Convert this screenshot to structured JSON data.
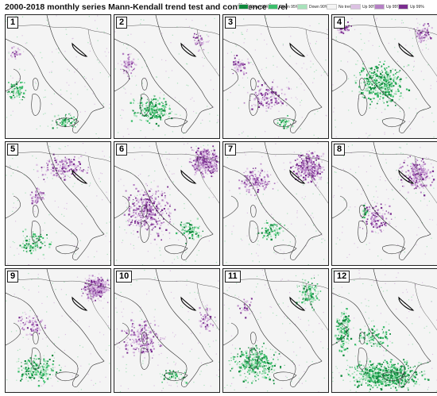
{
  "title": "2000-2018 monthly series Mann-Kendall trend test and confidence level",
  "legend": [
    {
      "label": "Down 99%",
      "color": "#0f8a3c"
    },
    {
      "label": "Down 95%",
      "color": "#3cbf6c"
    },
    {
      "label": "Down 90%",
      "color": "#a8e2bb"
    },
    {
      "label": "No trend",
      "color": "#f5f5f5"
    },
    {
      "label": "Up 90%",
      "color": "#dcc1e3"
    },
    {
      "label": "Up 95%",
      "color": "#b57fc4"
    },
    {
      "label": "Up 99%",
      "color": "#7a2d8f"
    }
  ],
  "panels": [
    {
      "label": "1",
      "month": 1,
      "pattern": [
        [
          "down",
          0.1,
          0.6,
          0.15,
          0.1,
          80
        ],
        [
          "down",
          0.55,
          0.85,
          0.15,
          0.08,
          60
        ],
        [
          "up",
          0.1,
          0.3,
          0.1,
          0.08,
          30
        ]
      ]
    },
    {
      "label": "2",
      "month": 2,
      "pattern": [
        [
          "down",
          0.35,
          0.75,
          0.25,
          0.14,
          220
        ],
        [
          "up",
          0.12,
          0.4,
          0.1,
          0.12,
          70
        ],
        [
          "up",
          0.8,
          0.2,
          0.1,
          0.1,
          40
        ]
      ]
    },
    {
      "label": "3",
      "month": 3,
      "pattern": [
        [
          "up",
          0.4,
          0.65,
          0.25,
          0.15,
          160
        ],
        [
          "up",
          0.15,
          0.4,
          0.1,
          0.1,
          60
        ],
        [
          "down",
          0.55,
          0.85,
          0.12,
          0.06,
          40
        ]
      ]
    },
    {
      "label": "4",
      "month": 4,
      "pattern": [
        [
          "down",
          0.45,
          0.55,
          0.3,
          0.22,
          420
        ],
        [
          "up",
          0.85,
          0.15,
          0.12,
          0.1,
          80
        ],
        [
          "up",
          0.1,
          0.1,
          0.1,
          0.08,
          40
        ]
      ]
    },
    {
      "label": "5",
      "month": 5,
      "pattern": [
        [
          "up",
          0.55,
          0.2,
          0.3,
          0.12,
          180
        ],
        [
          "down",
          0.25,
          0.8,
          0.2,
          0.12,
          120
        ],
        [
          "up",
          0.3,
          0.45,
          0.1,
          0.1,
          60
        ]
      ]
    },
    {
      "label": "6",
      "month": 6,
      "pattern": [
        [
          "up",
          0.85,
          0.15,
          0.18,
          0.15,
          420
        ],
        [
          "up",
          0.3,
          0.55,
          0.28,
          0.25,
          380
        ],
        [
          "down",
          0.7,
          0.7,
          0.15,
          0.12,
          90
        ]
      ]
    },
    {
      "label": "7",
      "month": 7,
      "pattern": [
        [
          "up",
          0.8,
          0.2,
          0.2,
          0.15,
          340
        ],
        [
          "up",
          0.3,
          0.3,
          0.2,
          0.15,
          160
        ],
        [
          "down",
          0.45,
          0.7,
          0.15,
          0.1,
          90
        ]
      ]
    },
    {
      "label": "8",
      "month": 8,
      "pattern": [
        [
          "up",
          0.8,
          0.25,
          0.2,
          0.18,
          260
        ],
        [
          "up",
          0.4,
          0.6,
          0.2,
          0.18,
          120
        ],
        [
          "down",
          0.3,
          0.55,
          0.05,
          0.08,
          30
        ]
      ]
    },
    {
      "label": "9",
      "month": 9,
      "pattern": [
        [
          "up",
          0.85,
          0.15,
          0.15,
          0.12,
          360
        ],
        [
          "down",
          0.3,
          0.8,
          0.25,
          0.14,
          220
        ],
        [
          "up",
          0.25,
          0.45,
          0.15,
          0.12,
          80
        ]
      ]
    },
    {
      "label": "10",
      "month": 10,
      "pattern": [
        [
          "up",
          0.25,
          0.55,
          0.25,
          0.2,
          220
        ],
        [
          "down",
          0.55,
          0.85,
          0.15,
          0.08,
          50
        ],
        [
          "up",
          0.85,
          0.4,
          0.1,
          0.15,
          60
        ]
      ]
    },
    {
      "label": "11",
      "month": 11,
      "pattern": [
        [
          "down",
          0.3,
          0.75,
          0.3,
          0.2,
          340
        ],
        [
          "down",
          0.8,
          0.2,
          0.15,
          0.15,
          120
        ],
        [
          "up",
          0.2,
          0.3,
          0.1,
          0.1,
          30
        ]
      ]
    },
    {
      "label": "12",
      "month": 12,
      "pattern": [
        [
          "down",
          0.5,
          0.85,
          0.45,
          0.15,
          700
        ],
        [
          "down",
          0.1,
          0.5,
          0.1,
          0.25,
          160
        ],
        [
          "down",
          0.4,
          0.55,
          0.2,
          0.12,
          100
        ]
      ]
    }
  ]
}
